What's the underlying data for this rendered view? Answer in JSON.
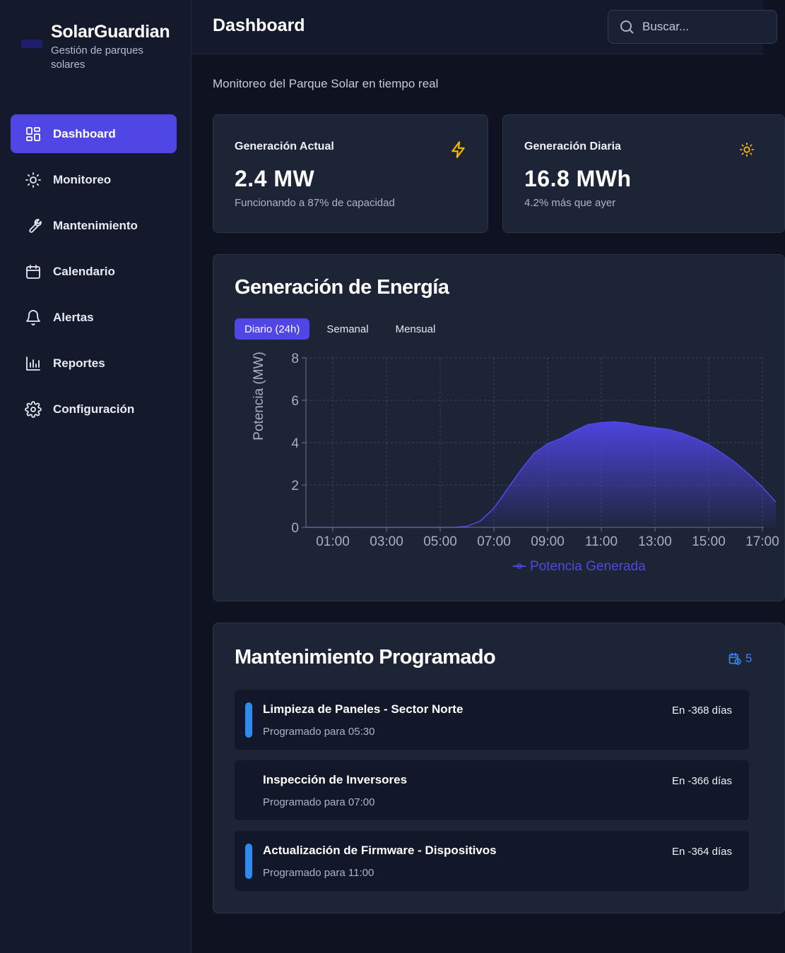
{
  "brand": {
    "title": "SolarGuardian",
    "subtitle": "Gestión de parques solares"
  },
  "nav": [
    {
      "label": "Dashboard",
      "icon": "grid-icon",
      "active": true
    },
    {
      "label": "Monitoreo",
      "icon": "sun-icon"
    },
    {
      "label": "Mantenimiento",
      "icon": "wrench-icon"
    },
    {
      "label": "Calendario",
      "icon": "calendar-icon"
    },
    {
      "label": "Alertas",
      "icon": "bell-icon"
    },
    {
      "label": "Reportes",
      "icon": "bar-chart-icon"
    },
    {
      "label": "Configuración",
      "icon": "gear-icon"
    }
  ],
  "header": {
    "title": "Dashboard",
    "search_placeholder": "Buscar..."
  },
  "main": {
    "subtitle": "Monitoreo del Parque Solar en tiempo real",
    "stats": [
      {
        "title": "Generación Actual",
        "value": "2.4 MW",
        "note": "Funcionando a 87% de capacidad",
        "icon": "lightning-icon",
        "icon_color": "#f5b800"
      },
      {
        "title": "Generación Diaria",
        "value": "16.8 MWh",
        "note": "4.2% más que ayer",
        "icon": "sun-icon",
        "icon_color": "#f5b800"
      }
    ],
    "energy": {
      "title": "Generación de Energía",
      "tabs": [
        "Diario (24h)",
        "Semanal",
        "Mensual"
      ],
      "active_tab": 0
    },
    "maintenance": {
      "title": "Mantenimiento Programado",
      "count": "5",
      "items": [
        {
          "title": "Limpieza de Paneles - Sector Norte",
          "schedule": "Programado para 05:30",
          "when": "En -368 días",
          "marker": true
        },
        {
          "title": "Inspección de Inversores",
          "schedule": "Programado para 07:00",
          "when": "En -366 días",
          "marker": false
        },
        {
          "title": "Actualización de Firmware - Dispositivos",
          "schedule": "Programado para 11:00",
          "when": "En -364 días",
          "marker": true
        }
      ]
    }
  },
  "chart_data": {
    "type": "area",
    "title": "",
    "ylabel": "Potencia (MW)",
    "xlabel": "",
    "ylim": [
      0,
      8
    ],
    "yticks": [
      0,
      2,
      4,
      6,
      8
    ],
    "xticks": [
      "01:00",
      "03:00",
      "05:00",
      "07:00",
      "09:00",
      "11:00",
      "13:00",
      "15:00",
      "17:00"
    ],
    "x": [
      0,
      1,
      2,
      3,
      4,
      5,
      5.5,
      6,
      6.5,
      7,
      7.5,
      8,
      8.5,
      9,
      9.5,
      10,
      10.5,
      11,
      11.5,
      12,
      12.5,
      13,
      13.5,
      14,
      14.5,
      15,
      15.5,
      16,
      16.5,
      17,
      17.5
    ],
    "series": [
      {
        "name": "Potencia Generada",
        "color": "#4f46e5",
        "values": [
          0,
          0,
          0,
          0,
          0,
          0,
          0,
          0.05,
          0.3,
          0.9,
          1.8,
          2.7,
          3.5,
          3.95,
          4.2,
          4.55,
          4.85,
          4.95,
          4.98,
          4.92,
          4.78,
          4.7,
          4.62,
          4.45,
          4.2,
          3.9,
          3.5,
          3.05,
          2.5,
          1.9,
          1.2
        ]
      }
    ],
    "legend": "bottom-center",
    "grid": true
  }
}
